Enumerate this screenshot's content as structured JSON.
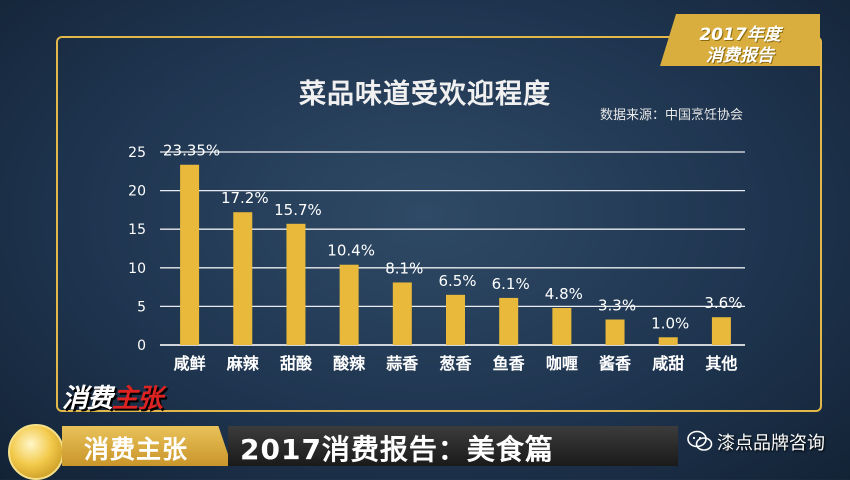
{
  "badge": {
    "line1": "2017年度",
    "line2": "消费报告"
  },
  "logo": {
    "part1": "消费",
    "part2": "主张"
  },
  "bottom_bar": {
    "tag_left": "消费主张",
    "headline": "2017消费报告：美食篇",
    "watermark": "漆点品牌咨询"
  },
  "chart_data": {
    "type": "bar",
    "title": "菜品味道受欢迎程度",
    "source": "数据来源：中国烹饪协会",
    "categories": [
      "咸鲜",
      "麻辣",
      "甜酸",
      "酸辣",
      "蒜香",
      "葱香",
      "鱼香",
      "咖喱",
      "酱香",
      "咸甜",
      "其他"
    ],
    "values": [
      23.35,
      17.2,
      15.7,
      10.4,
      8.1,
      6.5,
      6.1,
      4.8,
      3.3,
      1.0,
      3.6
    ],
    "value_labels": [
      "23.35%",
      "17.2%",
      "15.7%",
      "10.4%",
      "8.1%",
      "6.5%",
      "6.1%",
      "4.8%",
      "3.3%",
      "1.0%",
      "3.6%"
    ],
    "yticks": [
      "0",
      "5",
      "10",
      "15",
      "20",
      "25"
    ],
    "ylim": [
      0,
      25
    ],
    "grid": true,
    "bar_color": "#e8b93a",
    "xlabel": "",
    "ylabel": ""
  }
}
